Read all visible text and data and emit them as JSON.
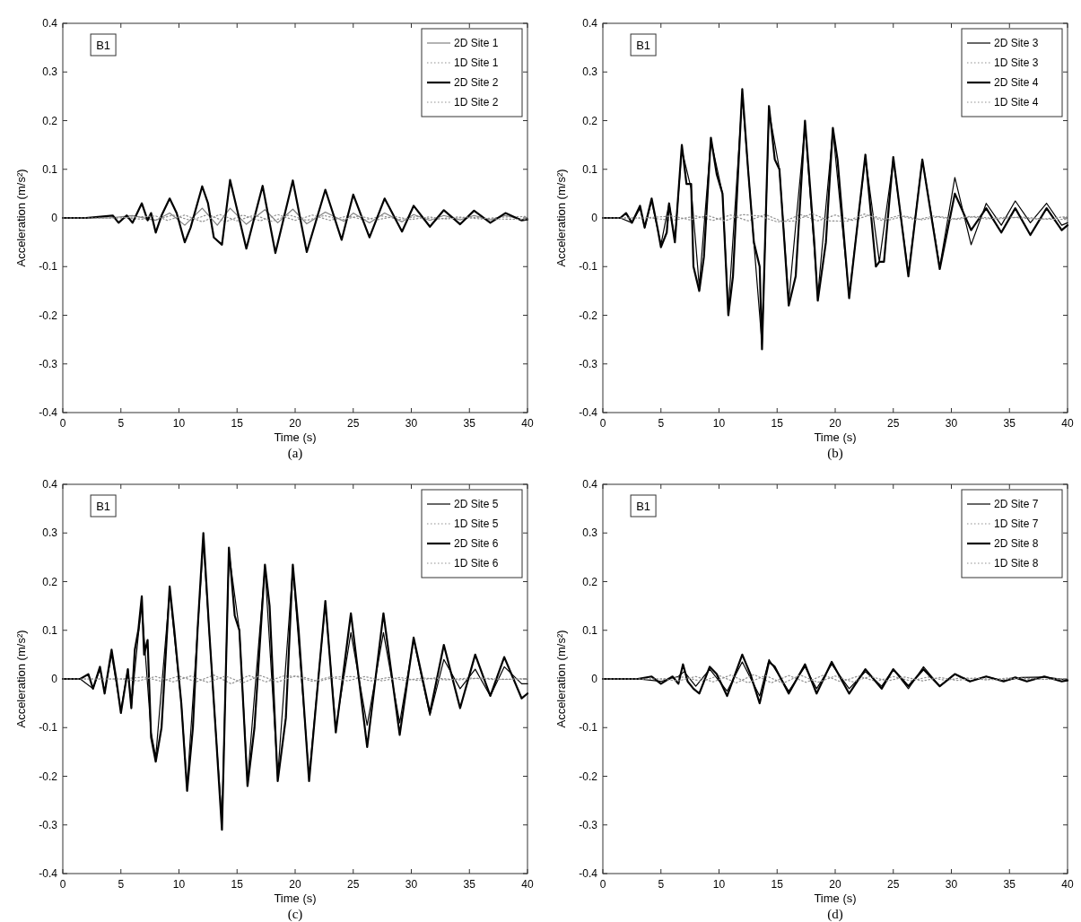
{
  "chart_data": [
    {
      "type": "line",
      "xlabel": "Time (s)",
      "ylabel": "Acceleration (m/s²)",
      "annotations": [
        "B1",
        "(a)"
      ],
      "xlim": [
        0,
        40
      ],
      "ylim": [
        -0.4,
        0.4
      ],
      "xticks": [
        0,
        5,
        10,
        15,
        20,
        25,
        30,
        35,
        40
      ],
      "yticks": [
        -0.4,
        -0.3,
        -0.2,
        -0.1,
        0,
        0.1,
        0.2,
        0.3,
        0.4
      ],
      "grid": false,
      "legend": "top right",
      "series": [
        {
          "name": "2D Site 1",
          "color": "#808080",
          "line_style": "solid",
          "x": [
            0,
            4,
            6,
            8,
            9.2,
            10.5,
            12,
            13.3,
            14.4,
            15.8,
            17.4,
            18.5,
            19.8,
            21,
            22.6,
            24.2,
            25,
            26.4,
            27.7,
            29.2,
            30.2,
            31.6,
            32.8,
            34.2,
            35.4,
            36.8,
            38.1,
            39.5,
            40
          ],
          "values": [
            0,
            0,
            0.005,
            -0.005,
            0.01,
            -0.015,
            0.02,
            -0.015,
            0.02,
            -0.013,
            0.017,
            -0.01,
            0.018,
            -0.012,
            0.012,
            -0.007,
            0.01,
            -0.01,
            0.01,
            -0.008,
            0.007,
            -0.005,
            0.005,
            -0.004,
            0.005,
            -0.004,
            0.005,
            -0.003,
            -0.002
          ]
        },
        {
          "name": "1D Site 1",
          "color": "#909090",
          "line_style": "dotted",
          "x": [
            0,
            5,
            8,
            9.5,
            11,
            12.5,
            14,
            15.5,
            17,
            18.5,
            20,
            21.5,
            23,
            24.5,
            26,
            27.5,
            29,
            30.5,
            32,
            34,
            36,
            38,
            40
          ],
          "values": [
            0,
            0,
            -0.004,
            0.006,
            -0.005,
            0.007,
            -0.008,
            0.006,
            -0.006,
            0.007,
            -0.005,
            0.006,
            -0.005,
            0.004,
            -0.004,
            0.004,
            -0.003,
            0.003,
            -0.003,
            0.002,
            -0.002,
            0.002,
            0.003
          ]
        },
        {
          "name": "2D Site 2",
          "color": "#000000",
          "line_style": "solid",
          "x": [
            0,
            2,
            4.3,
            4.8,
            5.5,
            6,
            6.8,
            7.3,
            7.6,
            8,
            8.5,
            9.2,
            9.8,
            10.5,
            11,
            12,
            12.5,
            13,
            13.7,
            14.4,
            15.8,
            17.2,
            18.3,
            19.8,
            21,
            22.6,
            24,
            25,
            26.4,
            27.7,
            29.2,
            30.2,
            31.6,
            32.8,
            34.2,
            35.4,
            36.8,
            38.1,
            39.5,
            40
          ],
          "values": [
            0,
            0,
            0.005,
            -0.01,
            0.005,
            -0.01,
            0.03,
            -0.005,
            0.01,
            -0.03,
            0.005,
            0.04,
            0.01,
            -0.05,
            -0.02,
            0.065,
            0.03,
            -0.04,
            -0.055,
            0.078,
            -0.063,
            0.066,
            -0.072,
            0.077,
            -0.07,
            0.058,
            -0.045,
            0.048,
            -0.04,
            0.04,
            -0.028,
            0.025,
            -0.018,
            0.016,
            -0.013,
            0.015,
            -0.01,
            0.01,
            -0.005,
            -0.003
          ]
        },
        {
          "name": "1D Site 2",
          "color": "#909090",
          "line_style": "dotted",
          "x": [
            0,
            4.5,
            8,
            9,
            10.5,
            12,
            13.5,
            15,
            16.5,
            18,
            19.5,
            21,
            22.5,
            24,
            25.5,
            27,
            28.5,
            30,
            31.5,
            33,
            35,
            37,
            40
          ],
          "values": [
            0,
            0,
            0.004,
            -0.005,
            0.006,
            -0.008,
            0.007,
            -0.006,
            0.006,
            -0.007,
            0.006,
            -0.005,
            0.005,
            -0.004,
            0.004,
            -0.004,
            0.003,
            -0.003,
            0.002,
            -0.002,
            0.002,
            -0.002,
            -0.003
          ]
        }
      ]
    },
    {
      "type": "line",
      "xlabel": "Time (s)",
      "ylabel": "Acceleration (m/s²)",
      "annotations": [
        "B1",
        "(b)"
      ],
      "xlim": [
        0,
        40
      ],
      "ylim": [
        -0.4,
        0.4
      ],
      "xticks": [
        0,
        5,
        10,
        15,
        20,
        25,
        30,
        35,
        40
      ],
      "yticks": [
        -0.4,
        -0.3,
        -0.2,
        -0.1,
        0,
        0.1,
        0.2,
        0.3,
        0.4
      ],
      "grid": false,
      "legend": "top right",
      "series": [
        {
          "name": "2D Site 3",
          "color": "#000000",
          "line_style": "solid",
          "x": [
            0,
            1.5,
            2.5,
            3.2,
            3.6,
            4.2,
            5,
            5.7,
            6.2,
            6.8,
            7.6,
            8.3,
            9.3,
            10.3,
            10.8,
            12,
            13,
            13.7,
            14.3,
            15.2,
            16,
            17.4,
            18.5,
            19.8,
            21.2,
            22.6,
            23.8,
            25,
            26.3,
            27.5,
            29,
            30.3,
            31.7,
            33,
            34.3,
            35.5,
            36.8,
            38.2,
            39.5,
            40
          ],
          "values": [
            0,
            0,
            -0.01,
            0.02,
            -0.02,
            0.035,
            -0.055,
            0.03,
            -0.045,
            0.14,
            0.06,
            -0.14,
            0.16,
            0.05,
            -0.19,
            0.25,
            -0.05,
            -0.26,
            0.22,
            0.1,
            -0.17,
            0.19,
            -0.16,
            0.18,
            -0.16,
            0.125,
            -0.09,
            0.12,
            -0.115,
            0.12,
            -0.1,
            0.083,
            -0.055,
            0.03,
            -0.015,
            0.035,
            -0.01,
            0.03,
            -0.015,
            -0.01
          ]
        },
        {
          "name": "1D Site 3",
          "color": "#909090",
          "line_style": "dotted",
          "x": [
            0,
            4,
            6,
            8,
            9.5,
            11,
            12.5,
            14,
            15.5,
            17,
            18.5,
            20,
            21.5,
            23,
            24.5,
            26,
            27.5,
            29,
            30.5,
            32,
            34,
            36,
            38,
            40
          ],
          "values": [
            0,
            0,
            -0.005,
            0.004,
            -0.005,
            0.006,
            -0.006,
            0.007,
            -0.008,
            0.007,
            -0.006,
            0.006,
            -0.005,
            0.006,
            -0.005,
            0.004,
            -0.004,
            0.003,
            -0.003,
            0.003,
            -0.002,
            0.002,
            -0.002,
            0.003
          ]
        },
        {
          "name": "2D Site 4",
          "color": "#000000",
          "line_style": "solid",
          "x": [
            0,
            1.5,
            2,
            2.5,
            3.2,
            3.6,
            4.2,
            4.7,
            5,
            5.5,
            5.7,
            6.2,
            6.8,
            7.2,
            7.6,
            7.8,
            8.3,
            8.7,
            9.3,
            9.8,
            10.3,
            10.8,
            11.2,
            12,
            12.5,
            13,
            13.5,
            13.7,
            14.3,
            14.8,
            15.2,
            16,
            16.6,
            17.4,
            18.2,
            18.5,
            19.2,
            19.8,
            20.2,
            21.2,
            22.6,
            23.5,
            23.8,
            24.2,
            25,
            26.3,
            27.5,
            29,
            30.3,
            31.7,
            33,
            34.3,
            35.5,
            36.8,
            38.2,
            39.5,
            40
          ],
          "values": [
            0,
            0,
            0.01,
            -0.01,
            0.025,
            -0.02,
            0.04,
            -0.02,
            -0.06,
            -0.03,
            0.03,
            -0.05,
            0.15,
            0.07,
            0.07,
            -0.1,
            -0.15,
            -0.08,
            0.165,
            0.09,
            0.05,
            -0.2,
            -0.12,
            0.265,
            0.1,
            -0.05,
            -0.1,
            -0.27,
            0.23,
            0.12,
            0.1,
            -0.18,
            -0.12,
            0.2,
            -0.05,
            -0.17,
            -0.05,
            0.185,
            0.12,
            -0.165,
            0.13,
            -0.1,
            -0.09,
            -0.09,
            0.125,
            -0.12,
            0.12,
            -0.105,
            0.05,
            -0.025,
            0.02,
            -0.03,
            0.02,
            -0.035,
            0.02,
            -0.025,
            -0.015
          ]
        },
        {
          "name": "1D Site 4",
          "color": "#909090",
          "line_style": "dotted",
          "x": [
            0,
            3.5,
            6,
            7.5,
            9,
            10.5,
            12,
            13.5,
            15,
            16.5,
            18,
            19.5,
            21,
            22.5,
            24,
            25.5,
            27,
            28.5,
            30,
            31.5,
            33,
            35,
            37,
            40
          ],
          "values": [
            0,
            0,
            0.004,
            -0.004,
            0.005,
            -0.006,
            0.007,
            0.004,
            -0.008,
            -0.006,
            0.009,
            -0.006,
            -0.007,
            0.008,
            -0.005,
            0.005,
            -0.004,
            0.004,
            -0.003,
            0.003,
            -0.002,
            0.002,
            -0.002,
            -0.003
          ]
        }
      ]
    },
    {
      "type": "line",
      "xlabel": "Time (s)",
      "ylabel": "Acceleration (m/s²)",
      "annotations": [
        "B1",
        "(c)"
      ],
      "xlim": [
        0,
        40
      ],
      "ylim": [
        -0.4,
        0.4
      ],
      "xticks": [
        0,
        5,
        10,
        15,
        20,
        25,
        30,
        35,
        40
      ],
      "yticks": [
        -0.4,
        -0.3,
        -0.2,
        -0.1,
        0,
        0.1,
        0.2,
        0.3,
        0.4
      ],
      "grid": false,
      "legend": "top right",
      "series": [
        {
          "name": "2D Site 5",
          "color": "#000000",
          "line_style": "solid",
          "x": [
            0,
            1.5,
            2.6,
            3.2,
            3.6,
            4.2,
            5,
            5.6,
            5.9,
            6.5,
            6.8,
            7.6,
            8,
            9.2,
            10.2,
            10.7,
            11.6,
            12.1,
            13.2,
            13.7,
            14.3,
            15.2,
            15.9,
            17.4,
            18.5,
            19.8,
            21.2,
            22.6,
            23.5,
            24.8,
            26.2,
            27.6,
            29,
            30.2,
            31.6,
            32.8,
            34.2,
            35.5,
            36.8,
            38,
            39.5,
            40
          ],
          "values": [
            0,
            0,
            -0.02,
            0.02,
            -0.025,
            0.05,
            -0.065,
            0.02,
            -0.055,
            0.09,
            0.15,
            -0.11,
            -0.16,
            0.18,
            -0.05,
            -0.22,
            0.1,
            0.28,
            -0.12,
            -0.29,
            0.26,
            0.1,
            -0.21,
            0.23,
            -0.2,
            0.23,
            -0.2,
            0.155,
            -0.1,
            0.095,
            -0.095,
            0.095,
            -0.09,
            0.08,
            -0.075,
            0.04,
            -0.02,
            0.02,
            -0.035,
            0.025,
            -0.01,
            -0.01
          ]
        },
        {
          "name": "1D Site 5",
          "color": "#909090",
          "line_style": "dotted",
          "x": [
            0,
            5,
            7,
            8.5,
            10,
            11.5,
            13,
            14.5,
            16,
            17.5,
            19,
            20.5,
            22,
            23.5,
            25,
            26.5,
            28,
            29.5,
            31,
            33,
            35,
            37,
            40
          ],
          "values": [
            0,
            0,
            0.004,
            -0.005,
            0.006,
            -0.006,
            0.008,
            -0.01,
            0.007,
            -0.006,
            0.006,
            0.005,
            -0.005,
            0.004,
            0.005,
            -0.004,
            0.003,
            -0.003,
            0.002,
            -0.002,
            0.002,
            -0.001,
            0
          ]
        },
        {
          "name": "2D Site 6",
          "color": "#000000",
          "line_style": "solid",
          "x": [
            0,
            1.5,
            2.2,
            2.6,
            3.2,
            3.6,
            4.2,
            4.6,
            5,
            5.6,
            5.9,
            6.2,
            6.5,
            6.8,
            7,
            7.3,
            7.6,
            8,
            8.5,
            9.2,
            9.6,
            10.2,
            10.7,
            11.2,
            11.6,
            12.1,
            12.6,
            13.2,
            13.7,
            14.3,
            14.8,
            15.2,
            15.9,
            16.5,
            17.4,
            17.8,
            18.5,
            19.2,
            19.8,
            20.3,
            21.2,
            22.6,
            23.5,
            24.8,
            26.2,
            27.6,
            29,
            30.2,
            31.6,
            32.8,
            34.2,
            35.5,
            36.8,
            38,
            39.5,
            40
          ],
          "values": [
            0,
            0,
            0.01,
            -0.02,
            0.025,
            -0.03,
            0.06,
            0,
            -0.07,
            0.02,
            -0.06,
            0.06,
            0.1,
            0.17,
            0.05,
            0.08,
            -0.12,
            -0.17,
            -0.1,
            0.19,
            0.1,
            -0.05,
            -0.23,
            -0.1,
            0.1,
            0.3,
            0.1,
            -0.12,
            -0.31,
            0.27,
            0.13,
            0.1,
            -0.22,
            -0.1,
            0.235,
            0.15,
            -0.21,
            -0.08,
            0.235,
            0.1,
            -0.21,
            0.16,
            -0.11,
            0.135,
            -0.14,
            0.135,
            -0.115,
            0.085,
            -0.07,
            0.07,
            -0.06,
            0.05,
            -0.035,
            0.045,
            -0.04,
            -0.03
          ]
        },
        {
          "name": "1D Site 6",
          "color": "#909090",
          "line_style": "dotted",
          "x": [
            0,
            5,
            6.5,
            8,
            9.5,
            11,
            12.5,
            14,
            15.5,
            17,
            18.5,
            20,
            21.5,
            23,
            24.5,
            26,
            27.5,
            29,
            30.5,
            32,
            34,
            36,
            38,
            40
          ],
          "values": [
            0,
            0,
            -0.004,
            0.005,
            -0.006,
            0.006,
            -0.007,
            0.006,
            -0.008,
            0.007,
            -0.006,
            0.006,
            -0.005,
            0.004,
            -0.004,
            0.005,
            -0.004,
            0.003,
            -0.003,
            0.002,
            -0.002,
            0.002,
            -0.001,
            0.001
          ]
        }
      ]
    },
    {
      "type": "line",
      "xlabel": "Time (s)",
      "ylabel": "Acceleration (m/s²)",
      "annotations": [
        "B1",
        "(d)"
      ],
      "xlim": [
        0,
        40
      ],
      "ylim": [
        -0.4,
        0.4
      ],
      "xticks": [
        0,
        5,
        10,
        15,
        20,
        25,
        30,
        35,
        40
      ],
      "yticks": [
        -0.4,
        -0.3,
        -0.2,
        -0.1,
        0,
        0.1,
        0.2,
        0.3,
        0.4
      ],
      "grid": false,
      "legend": "top right",
      "series": [
        {
          "name": "2D Site 7",
          "color": "#000000",
          "line_style": "solid",
          "x": [
            0,
            3,
            5,
            6.5,
            7,
            8,
            9.2,
            10.7,
            12,
            13.5,
            14.3,
            16,
            17.4,
            18.4,
            19.7,
            21.2,
            22.6,
            24,
            25,
            26.3,
            27.6,
            29,
            30.3,
            31.6,
            33,
            34.5,
            36,
            38,
            40
          ],
          "values": [
            0,
            0,
            -0.005,
            0.005,
            0.015,
            -0.015,
            0.02,
            -0.025,
            0.035,
            -0.035,
            0.04,
            -0.025,
            0.025,
            -0.02,
            0.03,
            -0.02,
            0.015,
            -0.015,
            0.02,
            -0.02,
            0.025,
            -0.015,
            0.01,
            -0.005,
            0.005,
            -0.004,
            0.003,
            0.004,
            -0.002
          ]
        },
        {
          "name": "1D Site 7",
          "color": "#909090",
          "line_style": "dotted",
          "x": [
            0,
            5,
            7,
            8.5,
            10,
            11.5,
            13,
            14.5,
            16,
            17.5,
            19,
            20.5,
            22,
            23.5,
            25,
            26.5,
            28,
            29.5,
            31,
            33,
            35,
            37,
            40
          ],
          "values": [
            0,
            0,
            0.004,
            -0.005,
            0.007,
            -0.008,
            0.009,
            -0.008,
            0.007,
            -0.007,
            0.008,
            -0.006,
            0.006,
            -0.005,
            0.005,
            -0.004,
            0.004,
            -0.003,
            0.003,
            -0.002,
            0.002,
            -0.001,
            0
          ]
        },
        {
          "name": "2D Site 8",
          "color": "#000000",
          "line_style": "solid",
          "x": [
            0,
            3,
            4.2,
            5,
            6,
            6.5,
            6.9,
            7.3,
            7.8,
            8.3,
            9.2,
            9.8,
            10.7,
            12,
            12.7,
            13.5,
            14.3,
            14.8,
            16,
            17.4,
            18.4,
            19.7,
            21.2,
            22.6,
            24,
            25,
            26.3,
            27.6,
            29,
            30.3,
            31.6,
            33,
            34.5,
            35.5,
            36.5,
            38,
            39.5,
            40
          ],
          "values": [
            0,
            0,
            0.005,
            -0.01,
            0.005,
            -0.01,
            0.03,
            -0.005,
            -0.02,
            -0.03,
            0.025,
            0.01,
            -0.035,
            0.05,
            0.01,
            -0.05,
            0.035,
            0.025,
            -0.03,
            0.03,
            -0.03,
            0.035,
            -0.03,
            0.02,
            -0.02,
            0.02,
            -0.015,
            0.02,
            -0.015,
            0.01,
            -0.005,
            0.005,
            -0.005,
            0.003,
            -0.005,
            0.005,
            -0.005,
            -0.003
          ]
        },
        {
          "name": "1D Site 8",
          "color": "#909090",
          "line_style": "dotted",
          "x": [
            0,
            5,
            6.5,
            8,
            9.5,
            11,
            12.5,
            14,
            15.5,
            17,
            18.5,
            20,
            21.5,
            23,
            24.5,
            26,
            27.5,
            29,
            30.5,
            32,
            34,
            36,
            38,
            40
          ],
          "values": [
            0,
            0,
            -0.004,
            0.005,
            -0.006,
            0.008,
            -0.008,
            0.007,
            -0.009,
            0.008,
            -0.007,
            0.006,
            -0.006,
            0.005,
            -0.004,
            0.004,
            -0.004,
            0.003,
            -0.003,
            0.002,
            -0.002,
            0.002,
            -0.001,
            0.001
          ]
        }
      ]
    }
  ]
}
